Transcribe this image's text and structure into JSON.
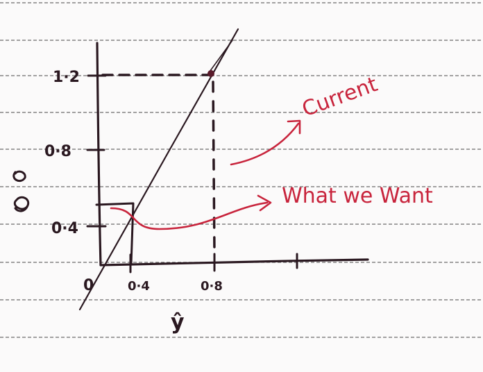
{
  "axes": {
    "x_label": "ŷ",
    "y_label": "",
    "x_ticks": [
      "0·4",
      "0·8"
    ],
    "y_ticks": [
      "0·4",
      "0·8",
      "1·2"
    ],
    "origin": "0"
  },
  "annotations": {
    "current": "Current",
    "what_we_want": "What we Want"
  },
  "colors": {
    "ink": "#2a1820",
    "annotation": "#c8243c",
    "rules": "#6b6b6b"
  }
}
